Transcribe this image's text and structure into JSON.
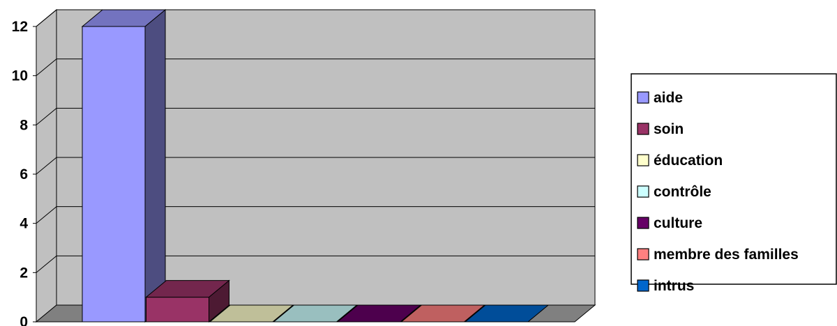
{
  "chart_data": {
    "type": "bar",
    "categories": [
      "aide",
      "soin",
      "éducation",
      "contrôle",
      "culture",
      "membre des familles",
      "intrus"
    ],
    "values": [
      12,
      1,
      0,
      0,
      0,
      0,
      0
    ],
    "colors": [
      "#9999ff",
      "#993366",
      "#ffffcc",
      "#ccffff",
      "#660066",
      "#ff8080",
      "#0066cc"
    ],
    "ylim": [
      0,
      12
    ],
    "yticks": [
      0,
      2,
      4,
      6,
      8,
      10,
      12
    ],
    "title": "",
    "xlabel": "",
    "ylabel": "",
    "grid": true,
    "legend": "right",
    "style": "3d-column",
    "background": "#c0c0c0"
  }
}
